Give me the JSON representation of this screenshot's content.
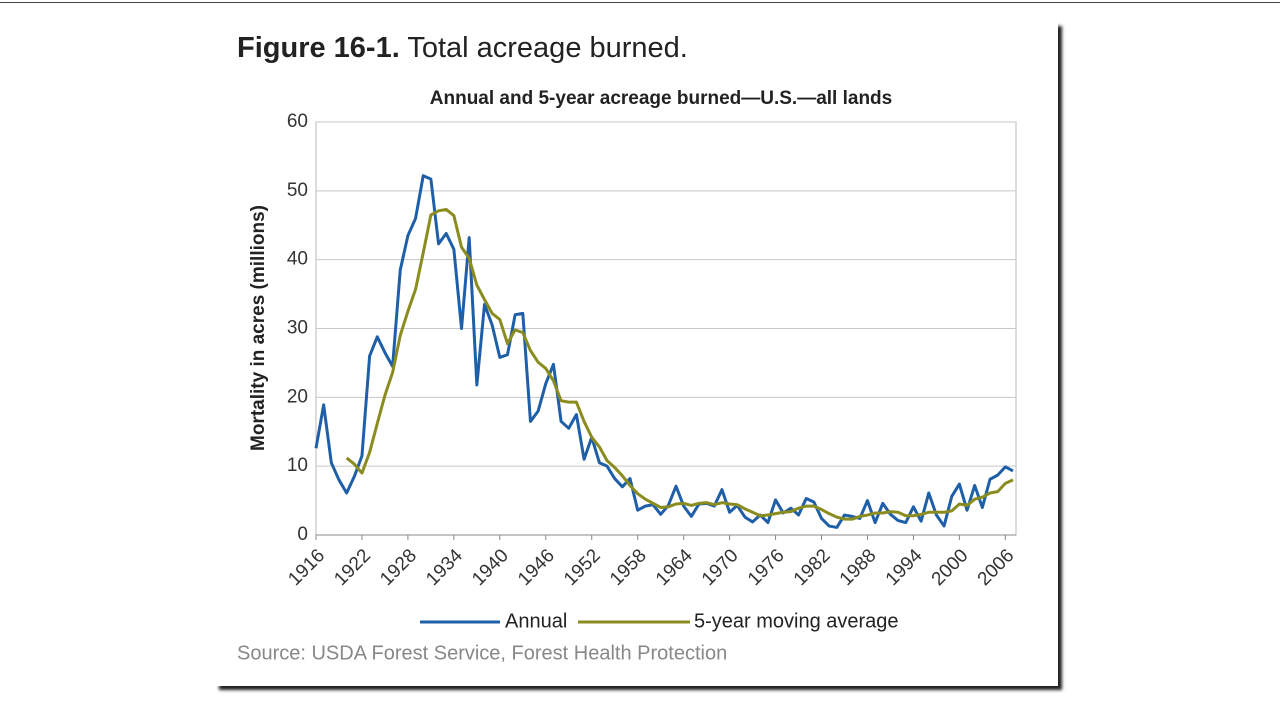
{
  "chart_data": {
    "type": "line",
    "figure_label": "Figure 16-1.",
    "title": "Total acreage burned.",
    "subtitle": "Annual and 5-year acreage burned—U.S.—all lands",
    "ylabel": "Mortality in acres (millions)",
    "source": "Source: USDA Forest Service, Forest Health Protection",
    "x": [
      1916,
      1917,
      1918,
      1919,
      1920,
      1921,
      1922,
      1923,
      1924,
      1925,
      1926,
      1927,
      1928,
      1929,
      1930,
      1931,
      1932,
      1933,
      1934,
      1935,
      1936,
      1937,
      1938,
      1939,
      1940,
      1941,
      1942,
      1943,
      1944,
      1945,
      1946,
      1947,
      1948,
      1949,
      1950,
      1951,
      1952,
      1953,
      1954,
      1955,
      1956,
      1957,
      1958,
      1959,
      1960,
      1961,
      1962,
      1963,
      1964,
      1965,
      1966,
      1967,
      1968,
      1969,
      1970,
      1971,
      1972,
      1973,
      1974,
      1975,
      1976,
      1977,
      1978,
      1979,
      1980,
      1981,
      1982,
      1983,
      1984,
      1985,
      1986,
      1987,
      1988,
      1989,
      1990,
      1991,
      1992,
      1993,
      1994,
      1995,
      1996,
      1997,
      1998,
      1999,
      2000,
      2001,
      2002,
      2003,
      2004,
      2005,
      2006,
      2007
    ],
    "series": [
      {
        "name": "Annual",
        "color": "#1f5fa8",
        "values": [
          12.6,
          18.9,
          10.5,
          8,
          6.1,
          8.5,
          11.5,
          26,
          28.8,
          26.5,
          24.5,
          38.5,
          43.5,
          46,
          52.2,
          51.7,
          42.3,
          43.8,
          41.5,
          30,
          43.2,
          21.8,
          33.5,
          30.5,
          25.8,
          26.2,
          32,
          32.2,
          16.5,
          18,
          22,
          24.8,
          16.5,
          15.5,
          17.5,
          11,
          14.2,
          10.5,
          10,
          8.2,
          7,
          8.2,
          3.6,
          4.2,
          4.4,
          3,
          4.3,
          7.1,
          4.2,
          2.7,
          4.5,
          4.6,
          4.2,
          6.6,
          3.3,
          4.3,
          2.6,
          1.9,
          2.9,
          1.8,
          5.1,
          3.2,
          3.9,
          2.9,
          5.3,
          4.8,
          2.4,
          1.3,
          1.1,
          2.9,
          2.7,
          2.4,
          5,
          1.8,
          4.6,
          3,
          2.1,
          1.8,
          4.1,
          2,
          6.1,
          2.9,
          1.3,
          5.6,
          7.4,
          3.6,
          7.2,
          4,
          8.1,
          8.7,
          9.9,
          9.3
        ]
      },
      {
        "name": "5-year moving average",
        "color": "#8b8c1f",
        "values": [
          null,
          null,
          null,
          null,
          11.2,
          10.3,
          9,
          12,
          16.2,
          20.3,
          23.6,
          29,
          32.5,
          35.7,
          41,
          46.5,
          47.1,
          47.3,
          46.4,
          41.8,
          40.2,
          36.3,
          34.2,
          32.2,
          31.3,
          27.8,
          29.8,
          29.4,
          26.8,
          25.1,
          24.2,
          22.4,
          19.5,
          19.3,
          19.3,
          16.5,
          14.2,
          12.8,
          10.8,
          9.8,
          8.6,
          7.2,
          6,
          5.2,
          4.6,
          4,
          4.1,
          4.5,
          4.6,
          4.3,
          4.6,
          4.7,
          4.4,
          4.7,
          4.5,
          4.4,
          3.8,
          3.3,
          2.8,
          2.9,
          3.1,
          3.3,
          3.4,
          3.9,
          4.2,
          4.2,
          3.7,
          3.1,
          2.6,
          2.3,
          2.3,
          2.7,
          2.9,
          3.2,
          3.2,
          3.4,
          3.3,
          2.8,
          2.8,
          3,
          3.3,
          3.3,
          3.3,
          3.5,
          4.5,
          4.3,
          5.2,
          5.5,
          6.1,
          6.3,
          7.5,
          8
        ]
      }
    ],
    "xlim": [
      1916,
      2007
    ],
    "xticks": [
      1916,
      1922,
      1928,
      1934,
      1940,
      1946,
      1952,
      1958,
      1964,
      1970,
      1976,
      1982,
      1988,
      1994,
      2000,
      2006
    ],
    "ylim": [
      0,
      60
    ],
    "yticks": [
      0,
      10,
      20,
      30,
      40,
      50,
      60
    ],
    "grid": true
  }
}
